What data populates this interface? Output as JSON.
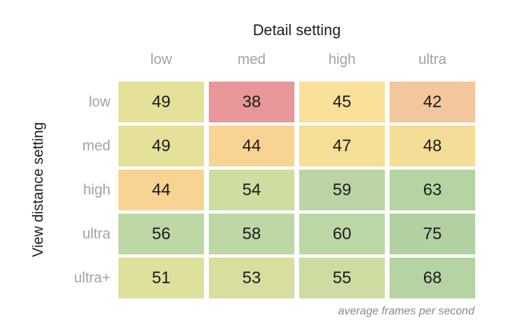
{
  "chart_data": {
    "type": "heatmap",
    "title": "Detail setting",
    "xlabel": "Detail setting",
    "ylabel": "View distance setting",
    "caption": "average frames per second",
    "columns": [
      "low",
      "med",
      "high",
      "ultra"
    ],
    "rows": [
      "low",
      "med",
      "high",
      "ultra",
      "ultra+"
    ],
    "values": [
      [
        49,
        38,
        45,
        42
      ],
      [
        49,
        44,
        47,
        48
      ],
      [
        44,
        54,
        59,
        63
      ],
      [
        56,
        58,
        60,
        75
      ],
      [
        51,
        53,
        55,
        68
      ]
    ],
    "cell_colors": [
      [
        "#e6e199",
        "#e89699",
        "#fae19a",
        "#f4c69d"
      ],
      [
        "#e6e199",
        "#f8d392",
        "#f5de95",
        "#f4dd96"
      ],
      [
        "#f8d392",
        "#d0dda1",
        "#bad5a3",
        "#b6d3a2"
      ],
      [
        "#bed8a5",
        "#bdd7a5",
        "#bcd7a6",
        "#b3d1a0"
      ],
      [
        "#dfe09b",
        "#d7de9e",
        "#cddca1",
        "#b6d3a4"
      ]
    ],
    "legend_position": "none",
    "grid": false,
    "value_range": [
      38,
      75
    ],
    "colors": {
      "value_text": "#1c1c1c",
      "tick_label": "#a3a3a3",
      "axis_title": "#1a1a1a",
      "caption_text": "#8a8a8a",
      "background": "#ffffff"
    }
  }
}
